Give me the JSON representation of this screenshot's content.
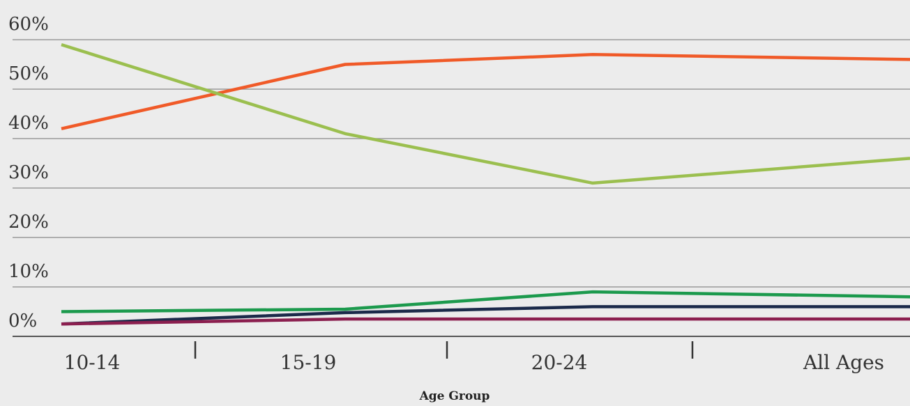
{
  "chart_data": {
    "type": "line",
    "title": "",
    "xlabel": "Age Group",
    "ylabel": "",
    "categories": [
      "10-14",
      "15-19",
      "20-24",
      "All Ages"
    ],
    "ylim": [
      0,
      60
    ],
    "yticks": [
      0,
      10,
      20,
      30,
      40,
      50,
      60
    ],
    "ytick_labels": [
      "0%",
      "10%",
      "20%",
      "30%",
      "40%",
      "50%",
      "60%"
    ],
    "grid": true,
    "legend": "none",
    "series": [
      {
        "color": "#f05a28",
        "points": [
          [
            0,
            42
          ],
          [
            1,
            55
          ],
          [
            2,
            57
          ],
          [
            3,
            56
          ]
        ]
      },
      {
        "color": "#9bbf4f",
        "points": [
          [
            0,
            59
          ],
          [
            1,
            41
          ],
          [
            2,
            31
          ],
          [
            3,
            36
          ]
        ]
      },
      {
        "color": "#1c9a4d",
        "points": [
          [
            0,
            5
          ],
          [
            1,
            5.5
          ],
          [
            2,
            9
          ],
          [
            3,
            8
          ]
        ]
      },
      {
        "color": "#1b2a4a",
        "points": [
          [
            0,
            2.5
          ],
          [
            1,
            4.8
          ],
          [
            2,
            6
          ],
          [
            3,
            6
          ]
        ]
      },
      {
        "color": "#8b1f4f",
        "points": [
          [
            0,
            2.5
          ],
          [
            1,
            3.5
          ],
          [
            2,
            3.5
          ],
          [
            3,
            3.5
          ]
        ]
      }
    ]
  }
}
